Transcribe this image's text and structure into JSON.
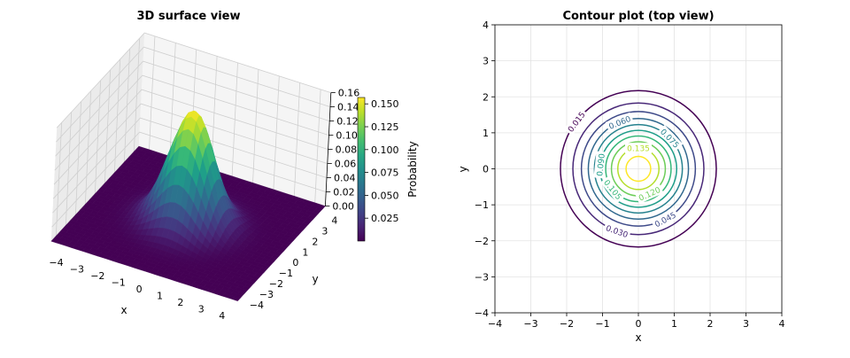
{
  "chart_data": [
    {
      "type": "surface3d",
      "title": "3D surface view",
      "xlabel": "x",
      "ylabel": "y",
      "zlabel": "Probability",
      "function": "bivariate standard normal pdf",
      "xlim": [
        -4.5,
        4.5
      ],
      "ylim": [
        -4.5,
        4.5
      ],
      "zlim": [
        0,
        0.16
      ],
      "xticks": [
        "−4",
        "−3",
        "−2",
        "−1",
        "0",
        "1",
        "2",
        "3",
        "4"
      ],
      "yticks": [
        "−4",
        "−3",
        "−2",
        "−1",
        "0",
        "1",
        "2",
        "3",
        "4"
      ],
      "zticks": [
        "0.00",
        "0.02",
        "0.04",
        "0.06",
        "0.08",
        "0.10",
        "0.12",
        "0.14",
        "0.16"
      ],
      "colormap": "viridis",
      "peak_value": 0.159,
      "colorbar": {
        "label": "Probability",
        "range": [
          0.0,
          0.157
        ],
        "ticks": [
          "0.025",
          "0.050",
          "0.075",
          "0.100",
          "0.125",
          "0.150"
        ]
      },
      "grid": true
    },
    {
      "type": "contour",
      "title": "Contour plot (top view)",
      "xlabel": "x",
      "ylabel": "y",
      "xlim": [
        -4,
        4
      ],
      "ylim": [
        -4,
        4
      ],
      "xticks": [
        "−4",
        "−3",
        "−2",
        "−1",
        "0",
        "1",
        "2",
        "3",
        "4"
      ],
      "yticks": [
        "−4",
        "−3",
        "−2",
        "−1",
        "0",
        "1",
        "2",
        "3",
        "4"
      ],
      "levels": [
        0.015,
        0.03,
        0.045,
        0.06,
        0.075,
        0.09,
        0.105,
        0.12,
        0.135,
        0.15
      ],
      "level_labels": [
        "0.015",
        "0.030",
        "0.045",
        "0.060",
        "0.075",
        "0.090",
        "0.105",
        "0.120",
        "0.135"
      ],
      "colormap": "viridis",
      "grid": true
    }
  ]
}
